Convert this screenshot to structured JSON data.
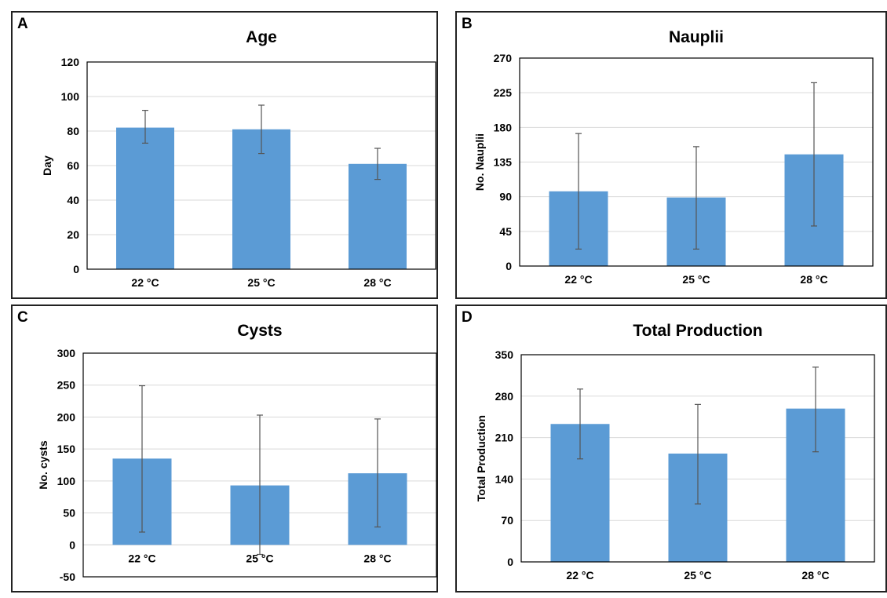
{
  "chart_data": [
    {
      "panel": "A",
      "type": "bar",
      "title": "Age",
      "ylabel": "Day",
      "xlabel": "",
      "categories": [
        "22 °C",
        "25 °C",
        "28 °C"
      ],
      "values": [
        82,
        81,
        61
      ],
      "error_low": [
        73,
        67,
        52
      ],
      "error_high": [
        92,
        95,
        70
      ],
      "ylim": [
        0,
        120
      ],
      "yticks": [
        "0",
        "20",
        "40",
        "60",
        "80",
        "100",
        "120"
      ],
      "grid": true,
      "color": "#5b9bd5"
    },
    {
      "panel": "B",
      "type": "bar",
      "title": "Nauplii",
      "ylabel": "No. Nauplii",
      "xlabel": "",
      "categories": [
        "22 °C",
        "25 °C",
        "28 °C"
      ],
      "values": [
        97,
        89,
        145
      ],
      "error_low": [
        22,
        22,
        52
      ],
      "error_high": [
        172,
        155,
        238
      ],
      "ylim": [
        0,
        270
      ],
      "yticks": [
        "0",
        "45",
        "90",
        "135",
        "180",
        "225",
        "270"
      ],
      "grid": true,
      "color": "#5b9bd5"
    },
    {
      "panel": "C",
      "type": "bar",
      "title": "Cysts",
      "ylabel": "No. cysts",
      "xlabel": "",
      "categories": [
        "22 °C",
        "25 °C",
        "28 °C"
      ],
      "values": [
        135,
        93,
        112
      ],
      "error_low": [
        20,
        -15,
        28
      ],
      "error_high": [
        249,
        203,
        197
      ],
      "ylim": [
        -50,
        300
      ],
      "yticks": [
        "-50",
        "0",
        "50",
        "100",
        "150",
        "200",
        "250",
        "300"
      ],
      "grid": true,
      "color": "#5b9bd5"
    },
    {
      "panel": "D",
      "type": "bar",
      "title": "Total Production",
      "ylabel": "Total Production",
      "xlabel": "",
      "categories": [
        "22 °C",
        "25 °C",
        "28 °C"
      ],
      "values": [
        233,
        183,
        259
      ],
      "error_low": [
        174,
        98,
        186
      ],
      "error_high": [
        292,
        266,
        329
      ],
      "ylim": [
        0,
        350
      ],
      "yticks": [
        "0",
        "70",
        "140",
        "210",
        "280",
        "350"
      ],
      "grid": true,
      "color": "#5b9bd5"
    }
  ]
}
